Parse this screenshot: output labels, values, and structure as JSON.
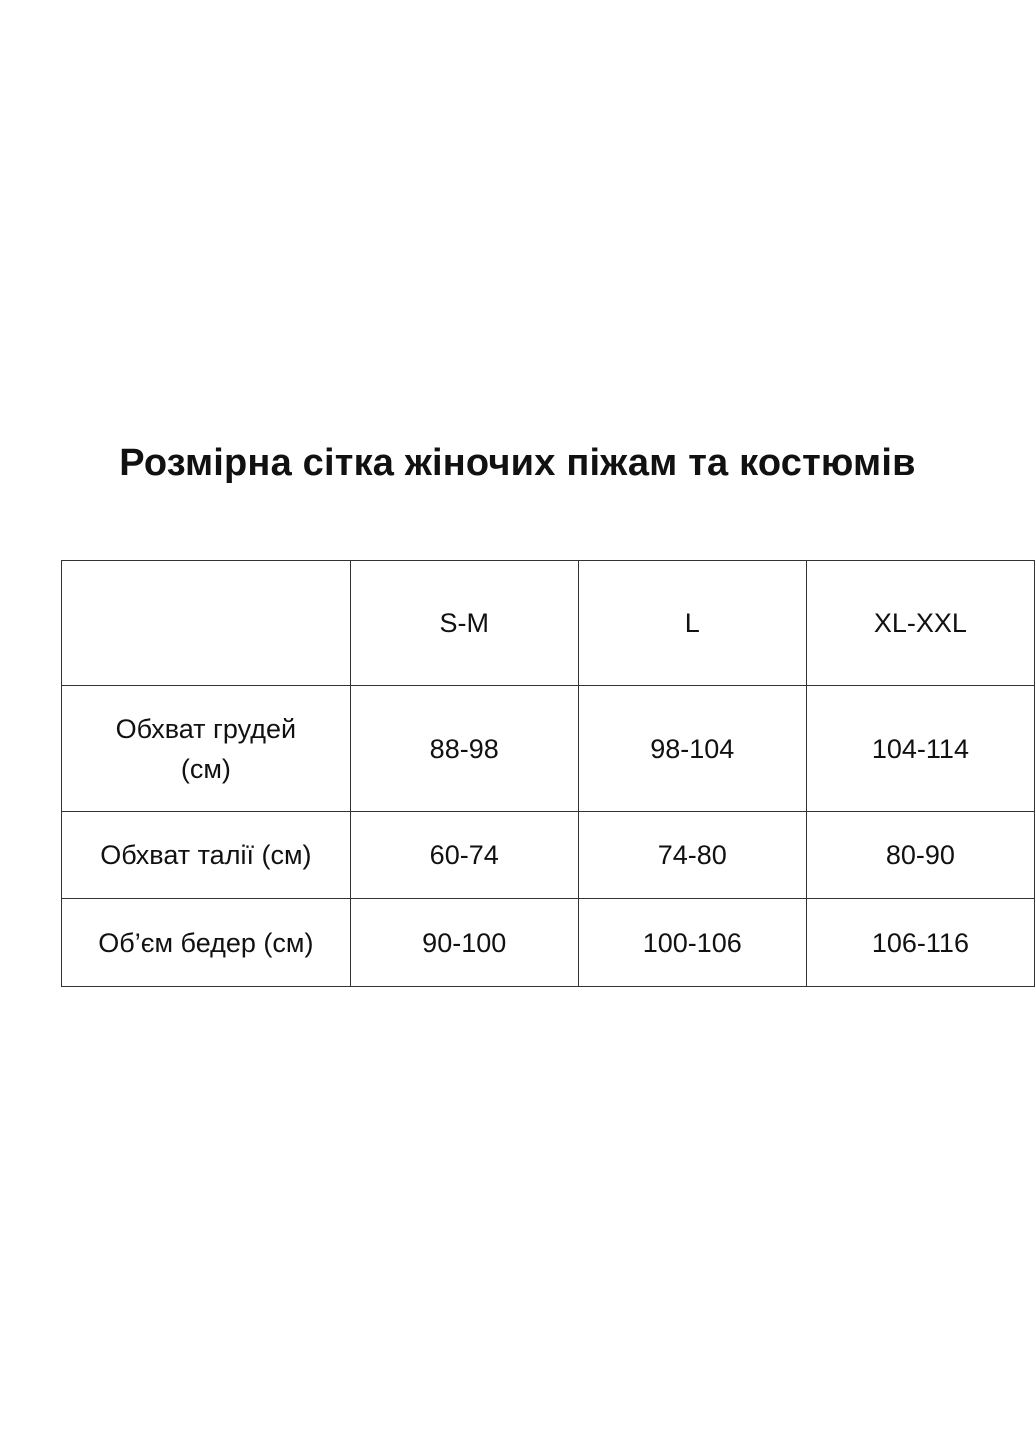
{
  "title": "Розмірна сітка жіночих піжам та костюмів",
  "table": {
    "header": [
      "",
      "S-M",
      "L",
      "XL-XXL"
    ],
    "rows": [
      {
        "label": "Обхват грудей (см)",
        "values": [
          "88-98",
          "98-104",
          "104-114"
        ]
      },
      {
        "label": "Обхват талії (см)",
        "values": [
          "60-74",
          "74-80",
          "80-90"
        ]
      },
      {
        "label": "Об’єм бедер (см)",
        "values": [
          "90-100",
          "100-106",
          "106-116"
        ]
      }
    ]
  }
}
